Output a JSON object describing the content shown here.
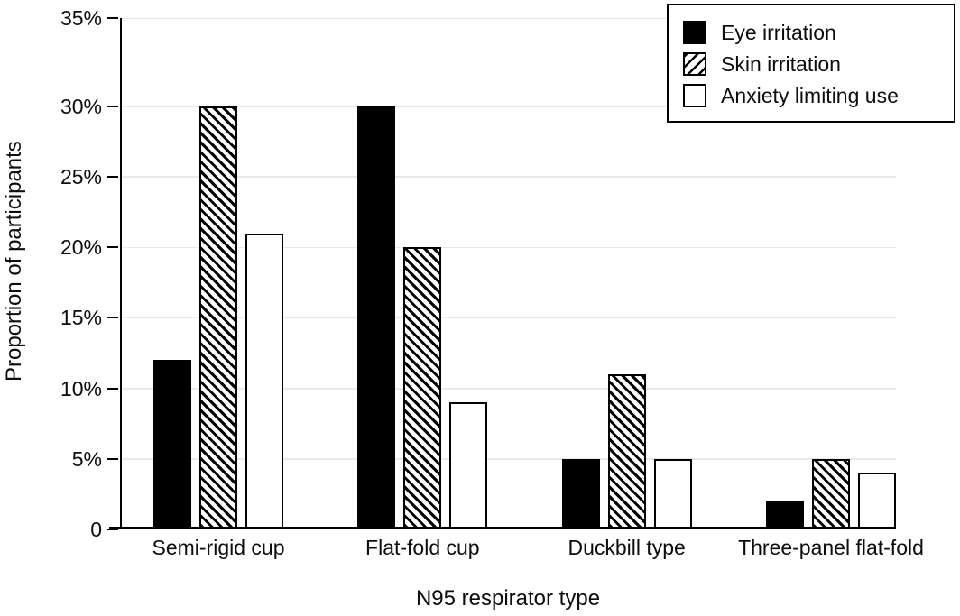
{
  "colors": {
    "background": "#ffffff",
    "axis": "#000000",
    "grid": "#e9e9e9",
    "bar_fill": "#000000",
    "bar_open": "#ffffff",
    "text": "#0d0d0d"
  },
  "legend": {
    "items": [
      {
        "label": "Eye irritation",
        "pattern": "solid"
      },
      {
        "label": "Skin irritation",
        "pattern": "hatch"
      },
      {
        "label": "Anxiety limiting use",
        "pattern": "open"
      }
    ]
  },
  "chart_data": {
    "type": "bar",
    "title": "",
    "xlabel": "N95 respirator type",
    "ylabel": "Proportion of participants",
    "categories": [
      "Semi-rigid cup",
      "Flat-fold cup",
      "Duckbill type",
      "Three-panel flat-fold"
    ],
    "series": [
      {
        "name": "Eye irritation",
        "pattern": "solid",
        "values": [
          12,
          30,
          5,
          2
        ]
      },
      {
        "name": "Skin irritation",
        "pattern": "hatch",
        "values": [
          30,
          20,
          11,
          5
        ]
      },
      {
        "name": "Anxiety limiting use",
        "pattern": "open",
        "values": [
          21,
          9,
          5,
          4
        ]
      }
    ],
    "ylim": [
      0,
      35
    ],
    "ytick_step": 5,
    "ytick_values": [
      0,
      5,
      10,
      15,
      20,
      25,
      30,
      35
    ],
    "ytick_labels": [
      "0",
      "5%",
      "10%",
      "15%",
      "20%",
      "25%",
      "30%",
      "35%"
    ],
    "grid": "horizontal",
    "legend_position": "top-right"
  }
}
